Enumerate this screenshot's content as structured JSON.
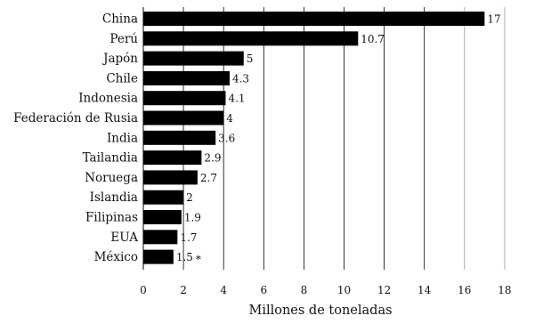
{
  "chart_data": {
    "type": "bar",
    "orientation": "horizontal",
    "categories": [
      "China",
      "Perú",
      "Japón",
      "Chile",
      "Indonesia",
      "Federación de Rusia",
      "India",
      "Tailandia",
      "Noruega",
      "Islandia",
      "Filipinas",
      "EUA",
      "México"
    ],
    "values": [
      17,
      10.7,
      5,
      4.3,
      4.1,
      4,
      3.6,
      2.9,
      2.7,
      2,
      1.9,
      1.7,
      1.5
    ],
    "value_labels": [
      "17",
      "10.7",
      "5",
      "4.3",
      "4.1",
      "4",
      "3.6",
      "2.9",
      "2.7",
      "2",
      "1.9",
      "1.7",
      "1.5"
    ],
    "annotation": "*",
    "xlabel": "Millones de toneladas",
    "ylabel": "",
    "title": "",
    "xlim": [
      0,
      18
    ],
    "xticks": [
      0,
      2,
      4,
      6,
      8,
      10,
      12,
      14,
      16,
      18
    ],
    "grid": "vertical",
    "bar_color": "#000000"
  }
}
